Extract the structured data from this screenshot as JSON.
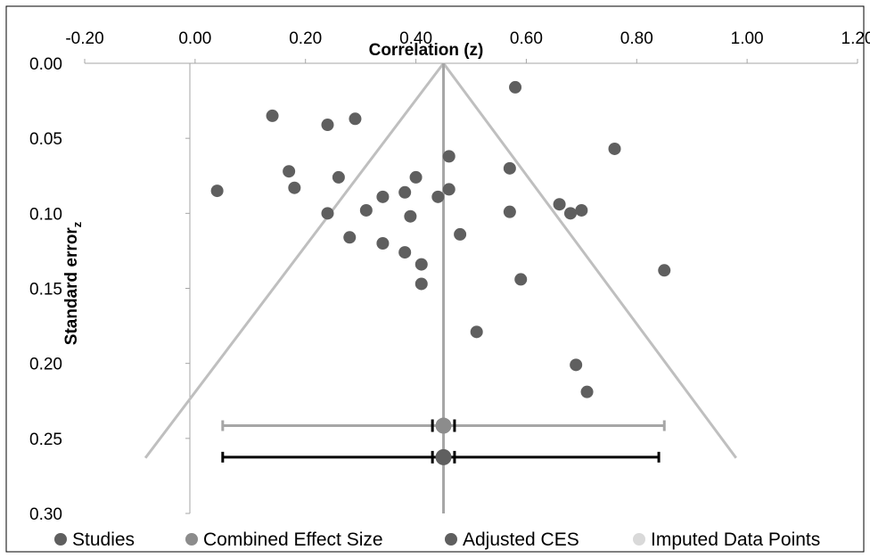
{
  "chart_data": {
    "type": "scatter",
    "title": "",
    "xlabel": "Correlation (z)",
    "ylabel_main": "Standard error",
    "ylabel_sub": "z",
    "xlim": [
      -0.2,
      1.2
    ],
    "ylim": [
      0.0,
      0.3
    ],
    "y_reversed": true,
    "x_ticks": [
      "-0.20",
      "0.00",
      "0.20",
      "0.40",
      "0.60",
      "0.80",
      "1.00",
      "1.20"
    ],
    "y_ticks": [
      "0.00",
      "0.05",
      "0.10",
      "0.15",
      "0.20",
      "0.25",
      "0.30"
    ],
    "grid": false,
    "legend_position": "bottom",
    "colors": {
      "studies": "#5f5f5f",
      "combined": "#8c8c8c",
      "adjusted": "#5f5f5f",
      "imputed": "#d9d9d9",
      "funnel": "#bfbfbf",
      "axis": "#a6a6a6",
      "combined_ci": "#a6a6a6",
      "adjusted_ci": "#000000"
    },
    "series": [
      {
        "name": "Studies",
        "points": [
          [
            0.58,
            0.016
          ],
          [
            0.14,
            0.035
          ],
          [
            0.24,
            0.041
          ],
          [
            0.29,
            0.037
          ],
          [
            0.76,
            0.057
          ],
          [
            0.46,
            0.062
          ],
          [
            0.17,
            0.072
          ],
          [
            0.26,
            0.076
          ],
          [
            0.57,
            0.07
          ],
          [
            0.4,
            0.076
          ],
          [
            0.04,
            0.085
          ],
          [
            0.18,
            0.083
          ],
          [
            0.46,
            0.084
          ],
          [
            0.34,
            0.089
          ],
          [
            0.38,
            0.086
          ],
          [
            0.44,
            0.089
          ],
          [
            0.66,
            0.094
          ],
          [
            0.68,
            0.1
          ],
          [
            0.7,
            0.098
          ],
          [
            0.24,
            0.1
          ],
          [
            0.31,
            0.098
          ],
          [
            0.57,
            0.099
          ],
          [
            0.39,
            0.102
          ],
          [
            0.48,
            0.114
          ],
          [
            0.28,
            0.116
          ],
          [
            0.34,
            0.12
          ],
          [
            0.38,
            0.126
          ],
          [
            0.41,
            0.134
          ],
          [
            0.85,
            0.138
          ],
          [
            0.59,
            0.144
          ],
          [
            0.41,
            0.147
          ],
          [
            0.51,
            0.179
          ],
          [
            0.69,
            0.201
          ],
          [
            0.71,
            0.219
          ]
        ]
      },
      {
        "name": "Combined Effect Size",
        "points": [
          [
            0.45,
            0.2415
          ]
        ],
        "ci": [
          0.05,
          0.85
        ],
        "inner_ci": [
          0.43,
          0.47
        ]
      },
      {
        "name": "Adjusted CES",
        "points": [
          [
            0.45,
            0.2625
          ]
        ],
        "ci": [
          0.05,
          0.84
        ],
        "inner_ci": [
          0.43,
          0.47
        ]
      },
      {
        "name": "Imputed Data Points",
        "points": []
      }
    ],
    "funnel": {
      "center": 0.45,
      "left_edge": [
        0.45,
        0.0,
        -0.09,
        0.263
      ],
      "right_edge": [
        0.45,
        0.0,
        0.98,
        0.263
      ]
    }
  }
}
